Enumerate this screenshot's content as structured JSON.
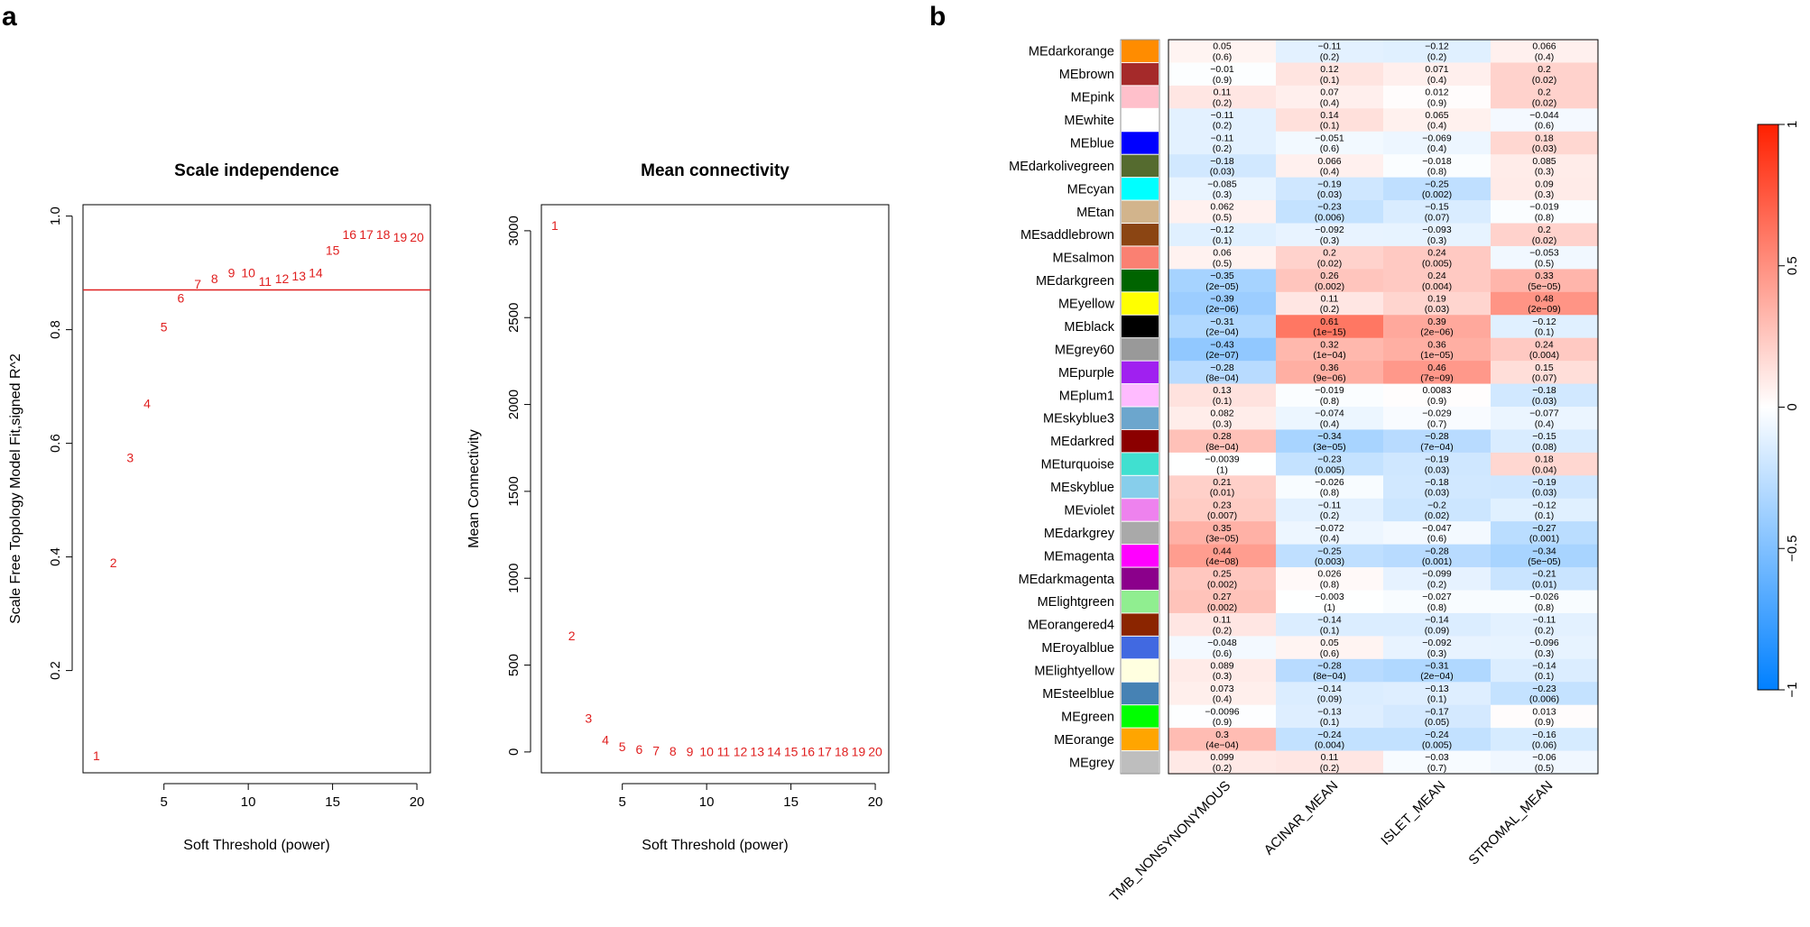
{
  "panel_labels": {
    "a": "a",
    "b": "b"
  },
  "chart_data": [
    {
      "type": "scatter",
      "title": "Scale independence",
      "xlabel": "Soft Threshold (power)",
      "ylabel": "Scale Free Topology Model Fit,signed R^2",
      "xlim": [
        0.2,
        20.8
      ],
      "ylim": [
        0.02,
        1.02
      ],
      "xticks": [
        5,
        10,
        15,
        20
      ],
      "yticks": [
        0.2,
        0.4,
        0.6,
        0.8,
        1.0
      ],
      "ytick_labels": [
        "0.2",
        "0.4",
        "0.6",
        "0.8",
        "1.0"
      ],
      "points": [
        {
          "x": 1,
          "y": 0.05,
          "label": "1"
        },
        {
          "x": 2,
          "y": 0.39,
          "label": "2"
        },
        {
          "x": 3,
          "y": 0.575,
          "label": "3"
        },
        {
          "x": 4,
          "y": 0.67,
          "label": "4"
        },
        {
          "x": 5,
          "y": 0.805,
          "label": "5"
        },
        {
          "x": 6,
          "y": 0.856,
          "label": "6"
        },
        {
          "x": 7,
          "y": 0.88,
          "label": "7"
        },
        {
          "x": 8,
          "y": 0.89,
          "label": "8"
        },
        {
          "x": 9,
          "y": 0.9,
          "label": "9"
        },
        {
          "x": 10,
          "y": 0.9,
          "label": "10"
        },
        {
          "x": 11,
          "y": 0.885,
          "label": "11"
        },
        {
          "x": 12,
          "y": 0.89,
          "label": "12"
        },
        {
          "x": 13,
          "y": 0.895,
          "label": "13"
        },
        {
          "x": 14,
          "y": 0.9,
          "label": "14"
        },
        {
          "x": 15,
          "y": 0.94,
          "label": "15"
        },
        {
          "x": 16,
          "y": 0.968,
          "label": "16"
        },
        {
          "x": 17,
          "y": 0.968,
          "label": "17"
        },
        {
          "x": 18,
          "y": 0.968,
          "label": "18"
        },
        {
          "x": 19,
          "y": 0.963,
          "label": "19"
        },
        {
          "x": 20,
          "y": 0.963,
          "label": "20"
        }
      ],
      "hline": 0.87,
      "color": "#e02020"
    },
    {
      "type": "scatter",
      "title": "Mean connectivity",
      "xlabel": "Soft Threshold (power)",
      "ylabel": "Mean Connectivity",
      "xlim": [
        0.2,
        20.8
      ],
      "ylim": [
        -120,
        3150
      ],
      "xticks": [
        5,
        10,
        15,
        20
      ],
      "yticks": [
        0,
        500,
        1000,
        1500,
        2000,
        2500,
        3000
      ],
      "ytick_labels": [
        "0",
        "500",
        "1000",
        "1500",
        "2000",
        "2500",
        "3000"
      ],
      "points": [
        {
          "x": 1,
          "y": 3030,
          "label": "1"
        },
        {
          "x": 2,
          "y": 670,
          "label": "2"
        },
        {
          "x": 3,
          "y": 195,
          "label": "3"
        },
        {
          "x": 4,
          "y": 70,
          "label": "4"
        },
        {
          "x": 5,
          "y": 30,
          "label": "5"
        },
        {
          "x": 6,
          "y": 15,
          "label": "6"
        },
        {
          "x": 7,
          "y": 8,
          "label": "7"
        },
        {
          "x": 8,
          "y": 5,
          "label": "8"
        },
        {
          "x": 9,
          "y": 3,
          "label": "9"
        },
        {
          "x": 10,
          "y": 2,
          "label": "10"
        },
        {
          "x": 11,
          "y": 2,
          "label": "11"
        },
        {
          "x": 12,
          "y": 1,
          "label": "12"
        },
        {
          "x": 13,
          "y": 1,
          "label": "13"
        },
        {
          "x": 14,
          "y": 1,
          "label": "14"
        },
        {
          "x": 15,
          "y": 1,
          "label": "15"
        },
        {
          "x": 16,
          "y": 1,
          "label": "16"
        },
        {
          "x": 17,
          "y": 1,
          "label": "17"
        },
        {
          "x": 18,
          "y": 1,
          "label": "18"
        },
        {
          "x": 19,
          "y": 1,
          "label": "19"
        },
        {
          "x": 20,
          "y": 1,
          "label": "20"
        }
      ],
      "color": "#e02020"
    },
    {
      "type": "heatmap",
      "columns": [
        "TMB_NONSYNONYMOUS",
        "ACINAR_MEAN",
        "ISLET_MEAN",
        "STROMAL_MEAN"
      ],
      "color_range": [
        -1,
        1
      ],
      "colorbar_ticks": [
        -1,
        -0.5,
        0,
        0.5,
        1
      ],
      "colorbar_tick_labels": [
        "−1",
        "−0.5",
        "0",
        "0.5",
        "1"
      ],
      "rows": [
        {
          "name": "MEdarkorange",
          "color": "#ff8c00",
          "r": [
            "0.05",
            "−0.11",
            "−0.12",
            "0.066"
          ],
          "p": [
            "(0.6)",
            "(0.2)",
            "(0.2)",
            "(0.4)"
          ]
        },
        {
          "name": "MEbrown",
          "color": "#a52a2a",
          "r": [
            "−0.01",
            "0.12",
            "0.071",
            "0.2"
          ],
          "p": [
            "(0.9)",
            "(0.1)",
            "(0.4)",
            "(0.02)"
          ]
        },
        {
          "name": "MEpink",
          "color": "#ffc0cb",
          "r": [
            "0.11",
            "0.07",
            "0.012",
            "0.2"
          ],
          "p": [
            "(0.2)",
            "(0.4)",
            "(0.9)",
            "(0.02)"
          ]
        },
        {
          "name": "MEwhite",
          "color": "#ffffff",
          "r": [
            "−0.11",
            "0.14",
            "0.065",
            "−0.044"
          ],
          "p": [
            "(0.2)",
            "(0.1)",
            "(0.4)",
            "(0.6)"
          ]
        },
        {
          "name": "MEblue",
          "color": "#0000ff",
          "r": [
            "−0.11",
            "−0.051",
            "−0.069",
            "0.18"
          ],
          "p": [
            "(0.2)",
            "(0.6)",
            "(0.4)",
            "(0.03)"
          ]
        },
        {
          "name": "MEdarkolivegreen",
          "color": "#556b2f",
          "r": [
            "−0.18",
            "0.066",
            "−0.018",
            "0.085"
          ],
          "p": [
            "(0.03)",
            "(0.4)",
            "(0.8)",
            "(0.3)"
          ]
        },
        {
          "name": "MEcyan",
          "color": "#00ffff",
          "r": [
            "−0.085",
            "−0.19",
            "−0.25",
            "0.09"
          ],
          "p": [
            "(0.3)",
            "(0.03)",
            "(0.002)",
            "(0.3)"
          ]
        },
        {
          "name": "MEtan",
          "color": "#d2b48c",
          "r": [
            "0.062",
            "−0.23",
            "−0.15",
            "−0.019"
          ],
          "p": [
            "(0.5)",
            "(0.006)",
            "(0.07)",
            "(0.8)"
          ]
        },
        {
          "name": "MEsaddlebrown",
          "color": "#8b4513",
          "r": [
            "−0.12",
            "−0.092",
            "−0.093",
            "0.2"
          ],
          "p": [
            "(0.1)",
            "(0.3)",
            "(0.3)",
            "(0.02)"
          ]
        },
        {
          "name": "MEsalmon",
          "color": "#fa8072",
          "r": [
            "0.06",
            "0.2",
            "0.24",
            "−0.053"
          ],
          "p": [
            "(0.5)",
            "(0.02)",
            "(0.005)",
            "(0.5)"
          ]
        },
        {
          "name": "MEdarkgreen",
          "color": "#006400",
          "r": [
            "−0.35",
            "0.26",
            "0.24",
            "0.33"
          ],
          "p": [
            "(2e−05)",
            "(0.002)",
            "(0.004)",
            "(5e−05)"
          ]
        },
        {
          "name": "MEyellow",
          "color": "#ffff00",
          "r": [
            "−0.39",
            "0.11",
            "0.19",
            "0.48"
          ],
          "p": [
            "(2e−06)",
            "(0.2)",
            "(0.03)",
            "(2e−09)"
          ]
        },
        {
          "name": "MEblack",
          "color": "#000000",
          "r": [
            "−0.31",
            "0.61",
            "0.39",
            "−0.12"
          ],
          "p": [
            "(2e−04)",
            "(1e−15)",
            "(2e−06)",
            "(0.1)"
          ]
        },
        {
          "name": "MEgrey60",
          "color": "#999999",
          "r": [
            "−0.43",
            "0.32",
            "0.36",
            "0.24"
          ],
          "p": [
            "(2e−07)",
            "(1e−04)",
            "(1e−05)",
            "(0.004)"
          ]
        },
        {
          "name": "MEpurple",
          "color": "#a020f0",
          "r": [
            "−0.28",
            "0.36",
            "0.46",
            "0.15"
          ],
          "p": [
            "(8e−04)",
            "(9e−06)",
            "(7e−09)",
            "(0.07)"
          ]
        },
        {
          "name": "MEplum1",
          "color": "#ffbbff",
          "r": [
            "0.13",
            "−0.019",
            "0.0083",
            "−0.18"
          ],
          "p": [
            "(0.1)",
            "(0.8)",
            "(0.9)",
            "(0.03)"
          ]
        },
        {
          "name": "MEskyblue3",
          "color": "#6ca6cd",
          "r": [
            "0.082",
            "−0.074",
            "−0.029",
            "−0.077"
          ],
          "p": [
            "(0.3)",
            "(0.4)",
            "(0.7)",
            "(0.4)"
          ]
        },
        {
          "name": "MEdarkred",
          "color": "#8b0000",
          "r": [
            "0.28",
            "−0.34",
            "−0.28",
            "−0.15"
          ],
          "p": [
            "(8e−04)",
            "(3e−05)",
            "(7e−04)",
            "(0.08)"
          ]
        },
        {
          "name": "MEturquoise",
          "color": "#40e0d0",
          "r": [
            "−0.0039",
            "−0.23",
            "−0.19",
            "0.18"
          ],
          "p": [
            "(1)",
            "(0.005)",
            "(0.03)",
            "(0.04)"
          ]
        },
        {
          "name": "MEskyblue",
          "color": "#87ceeb",
          "r": [
            "0.21",
            "−0.026",
            "−0.18",
            "−0.19"
          ],
          "p": [
            "(0.01)",
            "(0.8)",
            "(0.03)",
            "(0.03)"
          ]
        },
        {
          "name": "MEviolet",
          "color": "#ee82ee",
          "r": [
            "0.23",
            "−0.11",
            "−0.2",
            "−0.12"
          ],
          "p": [
            "(0.007)",
            "(0.2)",
            "(0.02)",
            "(0.1)"
          ]
        },
        {
          "name": "MEdarkgrey",
          "color": "#a9a9a9",
          "r": [
            "0.35",
            "−0.072",
            "−0.047",
            "−0.27"
          ],
          "p": [
            "(3e−05)",
            "(0.4)",
            "(0.6)",
            "(0.001)"
          ]
        },
        {
          "name": "MEmagenta",
          "color": "#ff00ff",
          "r": [
            "0.44",
            "−0.25",
            "−0.28",
            "−0.34"
          ],
          "p": [
            "(4e−08)",
            "(0.003)",
            "(0.001)",
            "(5e−05)"
          ]
        },
        {
          "name": "MEdarkmagenta",
          "color": "#8b008b",
          "r": [
            "0.25",
            "0.026",
            "−0.099",
            "−0.21"
          ],
          "p": [
            "(0.002)",
            "(0.8)",
            "(0.2)",
            "(0.01)"
          ]
        },
        {
          "name": "MElightgreen",
          "color": "#90ee90",
          "r": [
            "0.27",
            "−0.003",
            "−0.027",
            "−0.026"
          ],
          "p": [
            "(0.002)",
            "(1)",
            "(0.8)",
            "(0.8)"
          ]
        },
        {
          "name": "MEorangered4",
          "color": "#8b2500",
          "r": [
            "0.11",
            "−0.14",
            "−0.14",
            "−0.11"
          ],
          "p": [
            "(0.2)",
            "(0.1)",
            "(0.09)",
            "(0.2)"
          ]
        },
        {
          "name": "MEroyalblue",
          "color": "#4169e1",
          "r": [
            "−0.048",
            "0.05",
            "−0.092",
            "−0.096"
          ],
          "p": [
            "(0.6)",
            "(0.6)",
            "(0.3)",
            "(0.3)"
          ]
        },
        {
          "name": "MElightyellow",
          "color": "#ffffe0",
          "r": [
            "0.089",
            "−0.28",
            "−0.31",
            "−0.14"
          ],
          "p": [
            "(0.3)",
            "(8e−04)",
            "(2e−04)",
            "(0.1)"
          ]
        },
        {
          "name": "MEsteelblue",
          "color": "#4682b4",
          "r": [
            "0.073",
            "−0.14",
            "−0.13",
            "−0.23"
          ],
          "p": [
            "(0.4)",
            "(0.09)",
            "(0.1)",
            "(0.006)"
          ]
        },
        {
          "name": "MEgreen",
          "color": "#00ff00",
          "r": [
            "−0.0096",
            "−0.13",
            "−0.17",
            "0.013"
          ],
          "p": [
            "(0.9)",
            "(0.1)",
            "(0.05)",
            "(0.9)"
          ]
        },
        {
          "name": "MEorange",
          "color": "#ffa500",
          "r": [
            "0.3",
            "−0.24",
            "−0.24",
            "−0.16"
          ],
          "p": [
            "(4e−04)",
            "(0.004)",
            "(0.005)",
            "(0.06)"
          ]
        },
        {
          "name": "MEgrey",
          "color": "#bebebe",
          "r": [
            "0.099",
            "0.11",
            "−0.03",
            "−0.06"
          ],
          "p": [
            "(0.2)",
            "(0.2)",
            "(0.7)",
            "(0.5)"
          ]
        }
      ]
    }
  ]
}
